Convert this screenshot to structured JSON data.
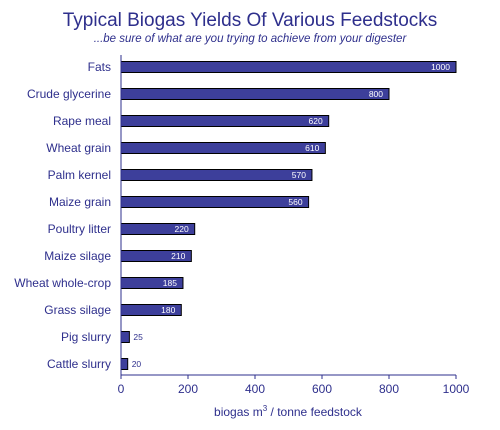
{
  "chart_data": {
    "type": "bar",
    "orientation": "horizontal",
    "title": "Typical Biogas Yields Of Various Feedstocks",
    "subtitle": "...be sure of what are you trying to achieve from your digester",
    "xlabel_prefix": "biogas m",
    "xlabel_sup": "3",
    "xlabel_suffix": " / tonne feedstock",
    "categories": [
      "Fats",
      "Crude glycerine",
      "Rape meal",
      "Wheat grain",
      "Palm kernel",
      "Maize grain",
      "Poultry litter",
      "Maize silage",
      "Wheat whole-crop",
      "Grass silage",
      "Pig slurry",
      "Cattle slurry"
    ],
    "values": [
      1000,
      800,
      620,
      610,
      570,
      560,
      220,
      210,
      185,
      180,
      25,
      20
    ],
    "xlim": [
      0,
      1000
    ],
    "xticks": [
      0,
      200,
      400,
      600,
      800,
      1000
    ],
    "grid": false,
    "colors": {
      "bar": "#3d3f9b",
      "text": "#2e2f8c",
      "bar_edge": "#000000"
    }
  }
}
